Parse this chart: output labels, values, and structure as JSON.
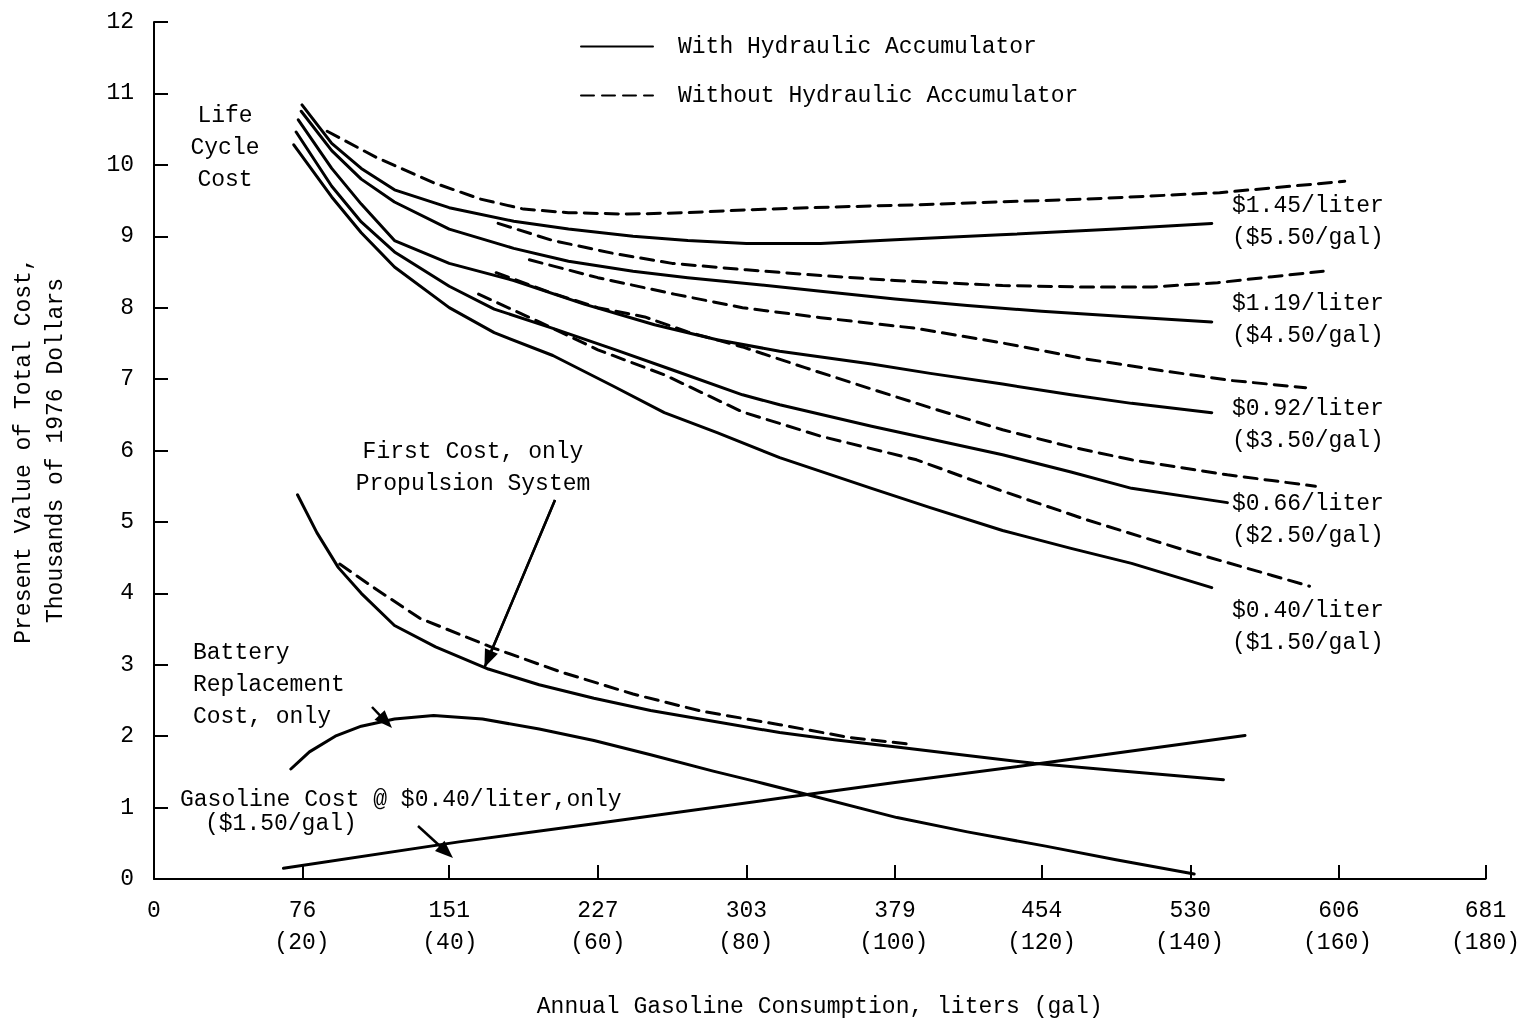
{
  "chart_data": {
    "type": "line",
    "xlabel": "Annual Gasoline Consumption, liters (gal)",
    "ylabel": "Present Value of Total Cost,\nThousands of 1976 Dollars",
    "xlim": [
      0,
      681
    ],
    "xticks": [
      0,
      76,
      151,
      227,
      303,
      379,
      454,
      530,
      606,
      681
    ],
    "x2lim": [
      0,
      180
    ],
    "x2ticks": [
      {
        "value": 20,
        "label": "(20)"
      },
      {
        "value": 40,
        "label": "(40)"
      },
      {
        "value": 60,
        "label": "(60)"
      },
      {
        "value": 80,
        "label": "(80)"
      },
      {
        "value": 100,
        "label": "(100)"
      },
      {
        "value": 120,
        "label": "(120)"
      },
      {
        "value": 140,
        "label": "(140)"
      },
      {
        "value": 160,
        "label": "(160)"
      },
      {
        "value": 180,
        "label": "(180)"
      }
    ],
    "ylim": [
      0,
      12
    ],
    "yticks": [
      0,
      1,
      2,
      3,
      4,
      5,
      6,
      7,
      8,
      9,
      10,
      11,
      12
    ],
    "grid": false,
    "legend": "top",
    "marker": "none",
    "series": [
      {
        "name": "With Hydraulic Accumulator",
        "color": "#000000",
        "line_style": "solid",
        "x": [
          75.7,
          90.9,
          106,
          123,
          151,
          184,
          212,
          245,
          273,
          303,
          341,
          379,
          433,
          492,
          541
        ],
        "values": [
          10.84,
          10.3,
          9.95,
          9.65,
          9.4,
          9.21,
          9.1,
          9.0,
          8.94,
          8.9,
          8.9,
          8.95,
          9.02,
          9.1,
          9.18
        ]
      },
      {
        "name": "Without Hydraulic Accumulator",
        "color": "#000000",
        "line_style": "dashed",
        "x": [
          88.6,
          114,
          143,
          167,
          189,
          212,
          242,
          273,
          303,
          348,
          390,
          432,
          477,
          545,
          609
        ],
        "values": [
          10.47,
          10.1,
          9.75,
          9.52,
          9.38,
          9.33,
          9.31,
          9.33,
          9.37,
          9.41,
          9.44,
          9.48,
          9.52,
          9.61,
          9.77
        ]
      },
      {
        "color": "#000000",
        "line_style": "solid",
        "x": [
          75.3,
          90.9,
          106,
          123,
          151,
          184,
          212,
          245,
          273,
          303,
          341,
          379,
          416,
          454,
          500,
          541
        ],
        "values": [
          10.75,
          10.2,
          9.8,
          9.48,
          9.1,
          8.83,
          8.65,
          8.51,
          8.42,
          8.34,
          8.23,
          8.12,
          8.03,
          7.95,
          7.87,
          7.8
        ]
      },
      {
        "color": "#000000",
        "line_style": "dashed",
        "x": [
          176,
          204,
          235,
          265,
          303,
          341,
          379,
          434,
          473,
          511,
          544,
          598
        ],
        "values": [
          9.18,
          8.94,
          8.76,
          8.62,
          8.53,
          8.45,
          8.38,
          8.31,
          8.29,
          8.29,
          8.35,
          8.51
        ]
      },
      {
        "color": "#000000",
        "line_style": "solid",
        "x": [
          73.8,
          90.9,
          106,
          123,
          151,
          184,
          220,
          256,
          288,
          320,
          367,
          397,
          434,
          469,
          500,
          541
        ],
        "values": [
          10.63,
          9.95,
          9.45,
          8.94,
          8.62,
          8.38,
          8.05,
          7.76,
          7.55,
          7.39,
          7.21,
          7.08,
          6.93,
          6.78,
          6.66,
          6.53
        ]
      },
      {
        "color": "#000000",
        "line_style": "dashed",
        "x": [
          192,
          227,
          266,
          301,
          341,
          390,
          435,
          477,
          515,
          551,
          589
        ],
        "values": [
          8.67,
          8.42,
          8.19,
          8.0,
          7.86,
          7.71,
          7.5,
          7.28,
          7.12,
          6.98,
          6.88
        ]
      },
      {
        "color": "#000000",
        "line_style": "solid",
        "x": [
          72.7,
          90.9,
          106,
          123,
          151,
          174,
          204,
          235,
          266,
          301,
          320,
          367,
          397,
          434,
          469,
          500,
          549
        ],
        "values": [
          10.46,
          9.7,
          9.2,
          8.78,
          8.3,
          7.98,
          7.71,
          7.42,
          7.12,
          6.78,
          6.64,
          6.34,
          6.16,
          5.94,
          5.7,
          5.47,
          5.27
        ]
      },
      {
        "color": "#000000",
        "line_style": "dashed",
        "x": [
          175,
          204,
          227,
          251,
          273,
          301,
          333,
          367,
          397,
          434,
          469,
          500,
          549,
          594
        ],
        "values": [
          8.49,
          8.2,
          8.0,
          7.87,
          7.66,
          7.45,
          7.16,
          6.86,
          6.6,
          6.29,
          6.05,
          5.87,
          5.66,
          5.5
        ]
      },
      {
        "color": "#000000",
        "line_style": "solid",
        "x": [
          71.5,
          90.9,
          106,
          123,
          151,
          174,
          204,
          235,
          261,
          288,
          320,
          367,
          397,
          434,
          469,
          500,
          541
        ],
        "values": [
          10.28,
          9.55,
          9.05,
          8.57,
          8.0,
          7.65,
          7.33,
          6.9,
          6.53,
          6.25,
          5.9,
          5.47,
          5.2,
          4.88,
          4.63,
          4.42,
          4.08
        ]
      },
      {
        "color": "#000000",
        "line_style": "dashed",
        "x": [
          166,
          197,
          227,
          261,
          301,
          341,
          390,
          432,
          477,
          530,
          591
        ],
        "values": [
          8.19,
          7.8,
          7.41,
          7.06,
          6.54,
          6.2,
          5.87,
          5.45,
          5.03,
          4.58,
          4.1
        ]
      },
      {
        "color": "#000000",
        "line_style": "solid",
        "x": [
          73.4,
          83.3,
          94.3,
          106,
          123,
          144,
          171,
          197,
          225,
          254,
          286,
          320,
          348,
          382,
          416,
          450,
          492,
          547
        ],
        "values": [
          5.38,
          4.85,
          4.36,
          4.0,
          3.55,
          3.25,
          2.94,
          2.72,
          2.53,
          2.36,
          2.21,
          2.05,
          1.95,
          1.84,
          1.73,
          1.62,
          1.52,
          1.39
        ]
      },
      {
        "color": "#000000",
        "line_style": "dashed",
        "x": [
          95,
          114,
          136,
          174,
          208,
          245,
          280,
          320,
          356,
          386
        ],
        "values": [
          4.41,
          4.05,
          3.65,
          3.23,
          2.9,
          2.59,
          2.35,
          2.16,
          1.98,
          1.89
        ]
      },
      {
        "color": "#000000",
        "line_style": "solid",
        "x": [
          70,
          79.5,
          92.7,
          106,
          123,
          143,
          168,
          197,
          225,
          254,
          286,
          307,
          333,
          380,
          416,
          456,
          492,
          532
        ],
        "values": [
          1.54,
          1.78,
          2.0,
          2.14,
          2.24,
          2.29,
          2.24,
          2.1,
          1.94,
          1.74,
          1.51,
          1.37,
          1.19,
          0.86,
          0.66,
          0.46,
          0.27,
          0.07
        ]
      },
      {
        "color": "#000000",
        "line_style": "solid",
        "x": [
          66.2,
          156,
          227,
          320,
          379,
          454,
          558
        ],
        "values": [
          0.15,
          0.52,
          0.78,
          1.13,
          1.35,
          1.62,
          2.01
        ]
      }
    ],
    "annotations": [
      "Life\nCycle\nCost",
      {
        "text": "First Cost, only\nPropulsion System",
        "x": 169,
        "y": 2.96
      },
      "Battery\nReplacement\nCost, only",
      "Gasoline Cost @ $0.40/liter,only\n($1.50/gal)",
      "$1.45/liter\n($5.50/gal)",
      "$1.19/liter\n($4.50/gal)",
      "$0.92/liter\n($3.50/gal)",
      "$0.66/liter\n($2.50/gal)",
      "$0.40/liter\n($1.50/gal)"
    ]
  }
}
